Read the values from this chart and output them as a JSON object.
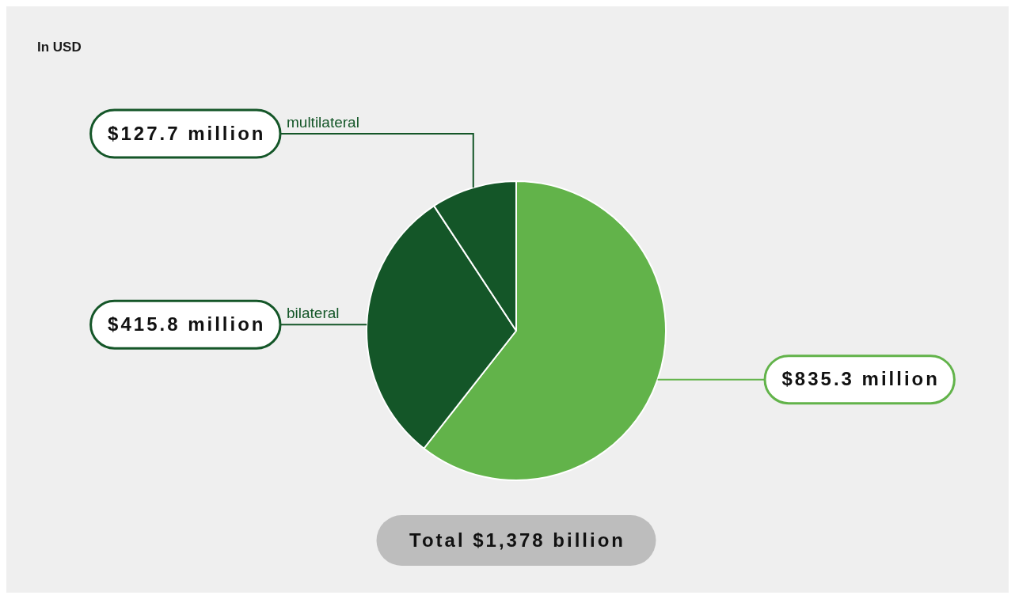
{
  "chart_data": {
    "type": "pie",
    "title": "In USD",
    "categories": [
      null,
      "bilateral",
      "multilateral"
    ],
    "values": [
      835.3,
      415.8,
      127.7
    ],
    "value_labels": [
      "$835.3 million",
      "$415.8 million",
      "$127.7 million"
    ],
    "colors": [
      "#62b34a",
      "#145628",
      "#145628"
    ],
    "annotations": [
      "Total $1,378 billion"
    ],
    "legend": false
  }
}
